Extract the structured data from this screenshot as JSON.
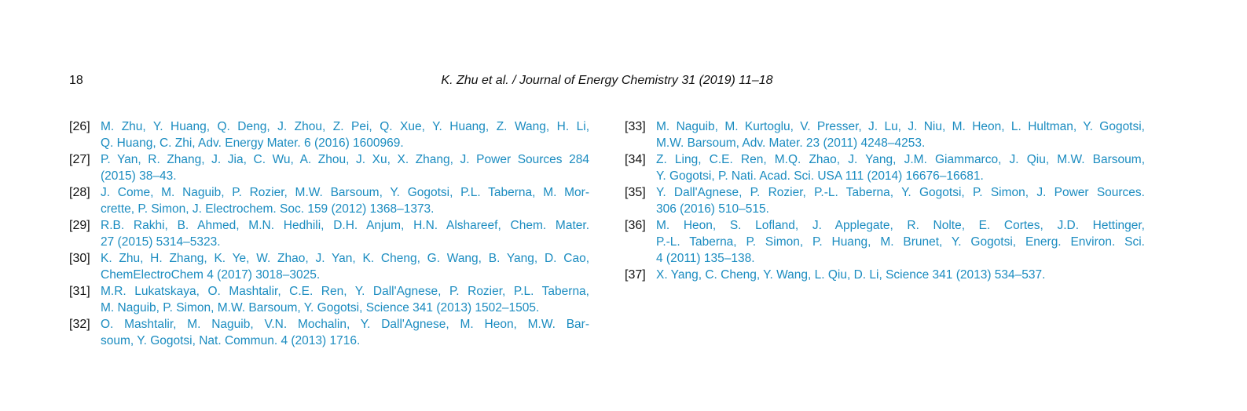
{
  "header": {
    "page_number": "18",
    "title": "K. Zhu et al. / Journal of Energy Chemistry 31 (2019) 11–18"
  },
  "references": {
    "left": [
      {
        "label": "[26]",
        "lines": [
          "M. Zhu, Y. Huang, Q. Deng, J. Zhou, Z. Pei, Q. Xue, Y. Huang, Z. Wang, H. Li,",
          "Q. Huang, C. Zhi, Adv. Energy Mater. 6 (2016) 1600969."
        ]
      },
      {
        "label": "[27]",
        "lines": [
          "P. Yan, R. Zhang, J. Jia, C. Wu, A. Zhou, J. Xu, X. Zhang, J. Power Sources 284",
          "(2015) 38–43."
        ]
      },
      {
        "label": "[28]",
        "lines": [
          "J. Come, M. Naguib, P. Rozier, M.W. Barsoum, Y. Gogotsi, P.L. Taberna, M. Mor-",
          "crette, P. Simon, J. Electrochem. Soc. 159 (2012) 1368–1373."
        ]
      },
      {
        "label": "[29]",
        "lines": [
          "R.B. Rakhi, B. Ahmed, M.N. Hedhili, D.H. Anjum, H.N. Alshareef, Chem. Mater.",
          "27 (2015) 5314–5323."
        ]
      },
      {
        "label": "[30]",
        "lines": [
          "K. Zhu, H. Zhang, K. Ye, W. Zhao, J. Yan, K. Cheng, G. Wang, B. Yang, D. Cao,",
          "ChemElectroChem 4 (2017) 3018–3025."
        ]
      },
      {
        "label": "[31]",
        "lines": [
          "M.R. Lukatskaya, O. Mashtalir, C.E. Ren, Y. Dall'Agnese, P. Rozier, P.L. Taberna,",
          "M. Naguib, P. Simon, M.W. Barsoum, Y. Gogotsi, Science 341 (2013) 1502–1505."
        ]
      },
      {
        "label": "[32]",
        "lines": [
          "O. Mashtalir, M. Naguib, V.N. Mochalin, Y. Dall'Agnese, M. Heon, M.W. Bar-",
          "soum, Y. Gogotsi, Nat. Commun. 4 (2013) 1716."
        ]
      }
    ],
    "right": [
      {
        "label": "[33]",
        "lines": [
          "M. Naguib, M. Kurtoglu, V. Presser, J. Lu, J. Niu, M. Heon, L. Hultman, Y. Gogotsi,",
          "M.W. Barsoum, Adv. Mater. 23 (2011) 4248–4253."
        ]
      },
      {
        "label": "[34]",
        "lines": [
          "Z. Ling, C.E. Ren, M.Q. Zhao, J. Yang, J.M. Giammarco, J. Qiu, M.W. Barsoum,",
          "Y. Gogotsi, P. Nati. Acad. Sci. USA 111 (2014) 16676–16681."
        ]
      },
      {
        "label": "[35]",
        "lines": [
          "Y. Dall'Agnese, P. Rozier, P.-L. Taberna, Y. Gogotsi, P. Simon, J. Power Sources.",
          "306 (2016) 510–515."
        ]
      },
      {
        "label": "[36]",
        "lines": [
          "M. Heon, S. Lofland, J. Applegate, R. Nolte, E. Cortes, J.D. Hettinger,",
          "P.-L. Taberna, P. Simon, P. Huang, M. Brunet, Y. Gogotsi, Energ. Environ. Sci.",
          "4 (2011) 135–138."
        ]
      },
      {
        "label": "[37]",
        "lines": [
          "X. Yang, C. Cheng, Y. Wang, L. Qiu, D. Li, Science 341 (2013) 534–537."
        ]
      }
    ]
  }
}
